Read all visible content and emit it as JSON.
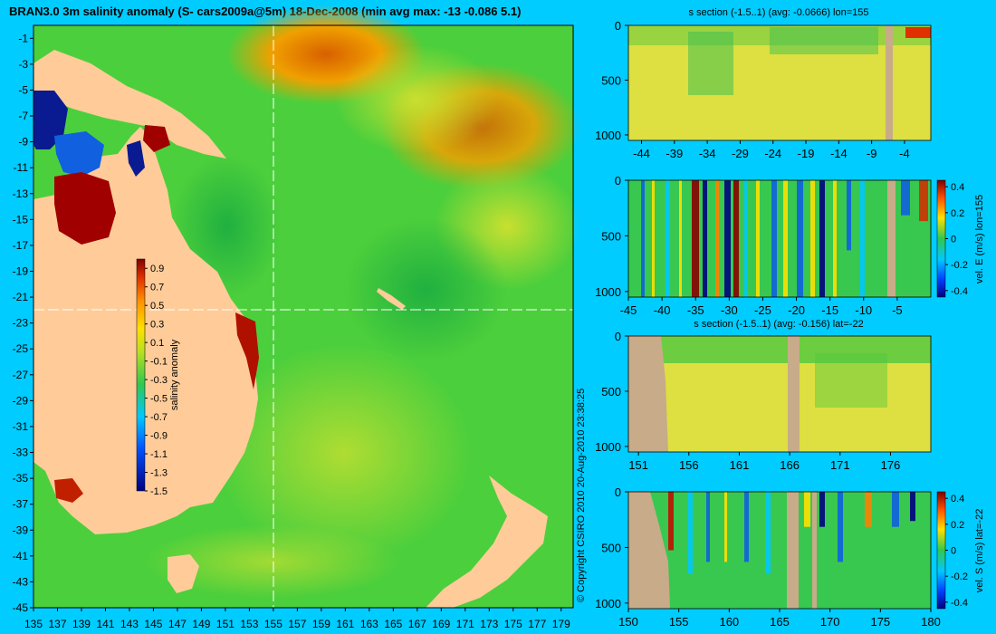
{
  "map": {
    "title": "BRAN3.0 3m salinity anomaly (S- cars2009a@5m) 18-Dec-2008 (min avg max: -13 -0.086 5.1)",
    "lat_ticks": [
      "-1",
      "-3",
      "-5",
      "-7",
      "-9",
      "-11",
      "-13",
      "-15",
      "-17",
      "-19",
      "-21",
      "-23",
      "-25",
      "-27",
      "-29",
      "-31",
      "-33",
      "-35",
      "-37",
      "-39",
      "-41",
      "-43",
      "-45"
    ],
    "lon_ticks": [
      "135",
      "137",
      "139",
      "141",
      "143",
      "145",
      "147",
      "149",
      "151",
      "153",
      "155",
      "157",
      "159",
      "161",
      "163",
      "165",
      "167",
      "169",
      "171",
      "173",
      "175",
      "177",
      "179"
    ],
    "colorbar": {
      "label": "salinity anomaly",
      "ticks": [
        "0.9",
        "0.7",
        "0.5",
        "0.3",
        "0.1",
        "-0.1",
        "-0.3",
        "-0.5",
        "-0.7",
        "-0.9",
        "-1.1",
        "-1.3",
        "-1.5"
      ]
    },
    "section_lon": 155,
    "section_lat": -22
  },
  "copyright": "© Copyright CSIRO 2010   20-Aug-2010 23:38:25",
  "panels": {
    "p1": {
      "title": "s section (-1.5..1) (avg: -0.0666) lon=155",
      "x_ticks": [
        "-44",
        "-39",
        "-34",
        "-29",
        "-24",
        "-19",
        "-14",
        "-9",
        "-4"
      ],
      "y_ticks": [
        "0",
        "500",
        "1000"
      ]
    },
    "p2": {
      "title": "",
      "x_ticks": [
        "-45",
        "-40",
        "-35",
        "-30",
        "-25",
        "-20",
        "-15",
        "-10",
        "-5"
      ],
      "y_ticks": [
        "0",
        "500",
        "1000"
      ],
      "colorbar_label": "vel. E (m/s) lon=155",
      "colorbar_ticks": [
        "0.4",
        "0.2",
        "0",
        "-0.2",
        "-0.4"
      ]
    },
    "p3": {
      "title": "s section (-1.5..1) (avg: -0.156) lat=-22",
      "x_ticks": [
        "151",
        "156",
        "161",
        "166",
        "171",
        "176"
      ],
      "y_ticks": [
        "0",
        "500",
        "1000"
      ]
    },
    "p4": {
      "title": "",
      "x_ticks": [
        "150",
        "155",
        "160",
        "165",
        "170",
        "175",
        "180"
      ],
      "y_ticks": [
        "0",
        "500",
        "1000"
      ],
      "colorbar_label": "vel. S (m/s) lat=-22",
      "colorbar_ticks": [
        "0.4",
        "0.2",
        "0",
        "-0.2",
        "-0.4"
      ]
    }
  },
  "colors": {
    "background": "#00ccff",
    "land": "#ffcc99",
    "section_land": "#c8ab88",
    "ocean_base": "#4ccf3c"
  },
  "chart_data": [
    {
      "type": "heatmap",
      "title": "BRAN3.0 3m salinity anomaly (S- cars2009a@5m) 18-Dec-2008 (min avg max: -13 -0.086 5.1)",
      "xlabel": "",
      "ylabel": "",
      "xlim": [
        135,
        180
      ],
      "ylim": [
        -45,
        0
      ],
      "colorbar_range": [
        -1.5,
        1
      ],
      "summary": {
        "min": -13,
        "avg": -0.086,
        "max": 5.1
      }
    },
    {
      "type": "heatmap",
      "title": "s section (-1.5..1) (avg: -0.0666) lon=155",
      "xlim": [
        -46,
        0
      ],
      "ylim": [
        1050,
        0
      ],
      "colorbar_range": [
        -1.5,
        1
      ]
    },
    {
      "type": "heatmap",
      "title": "",
      "colorbar_label": "vel. E (m/s) lon=155",
      "xlim": [
        -45,
        0
      ],
      "ylim": [
        1050,
        0
      ],
      "colorbar_range": [
        -0.45,
        0.45
      ]
    },
    {
      "type": "heatmap",
      "title": "s section (-1.5..1) (avg: -0.156) lat=-22",
      "xlim": [
        150,
        180
      ],
      "ylim": [
        1050,
        0
      ],
      "colorbar_range": [
        -1.5,
        1
      ]
    },
    {
      "type": "heatmap",
      "title": "",
      "colorbar_label": "vel. S (m/s) lat=-22",
      "xlim": [
        150,
        180
      ],
      "ylim": [
        1050,
        0
      ],
      "colorbar_range": [
        -0.45,
        0.45
      ]
    }
  ]
}
